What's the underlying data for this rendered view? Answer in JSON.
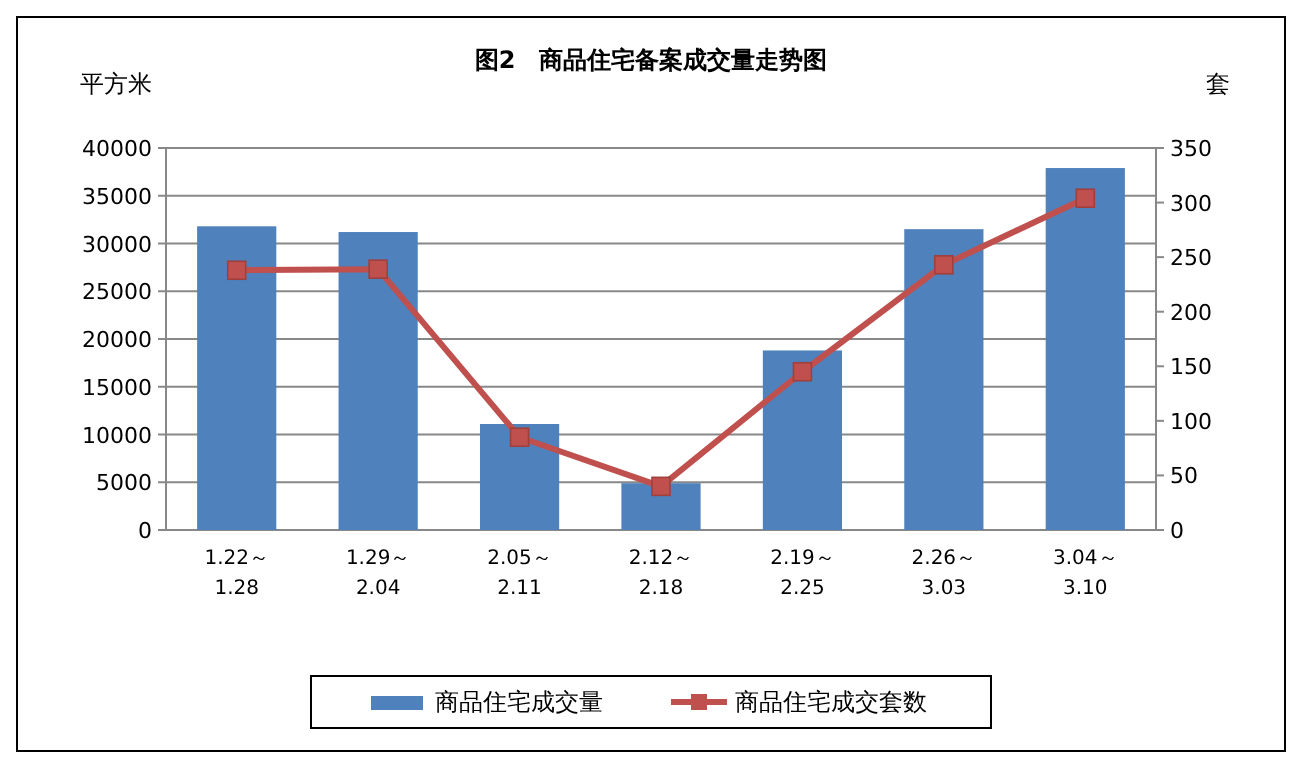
{
  "chart_data": {
    "type": "bar",
    "title": "图2　商品住宅备案成交量走势图",
    "ylabel": "平方米",
    "y2label": "套",
    "categories": [
      "1.22～\n1.28",
      "1.29～\n2.04",
      "2.05～\n2.11",
      "2.12～\n2.18",
      "2.19～\n2.25",
      "2.26～\n3.03",
      "3.04～\n3.10"
    ],
    "series": [
      {
        "name": "商品住宅成交量",
        "color": "#4f81bd",
        "values": [
          31800,
          31200,
          11100,
          4900,
          18800,
          31500,
          37900
        ]
      },
      {
        "name": "商品住宅成交套数",
        "type": "line",
        "axis": "y2",
        "color": "#c0504d",
        "marker": "square",
        "values": [
          238,
          239,
          85,
          40,
          145,
          243,
          304
        ]
      }
    ],
    "ylim": [
      0,
      40000
    ],
    "yticks": [
      0,
      5000,
      10000,
      15000,
      20000,
      25000,
      30000,
      35000,
      40000
    ],
    "y2lim": [
      0,
      350
    ],
    "y2ticks": [
      0,
      50,
      100,
      150,
      200,
      250,
      300,
      350
    ],
    "grid": "y",
    "legend": "bottom"
  }
}
